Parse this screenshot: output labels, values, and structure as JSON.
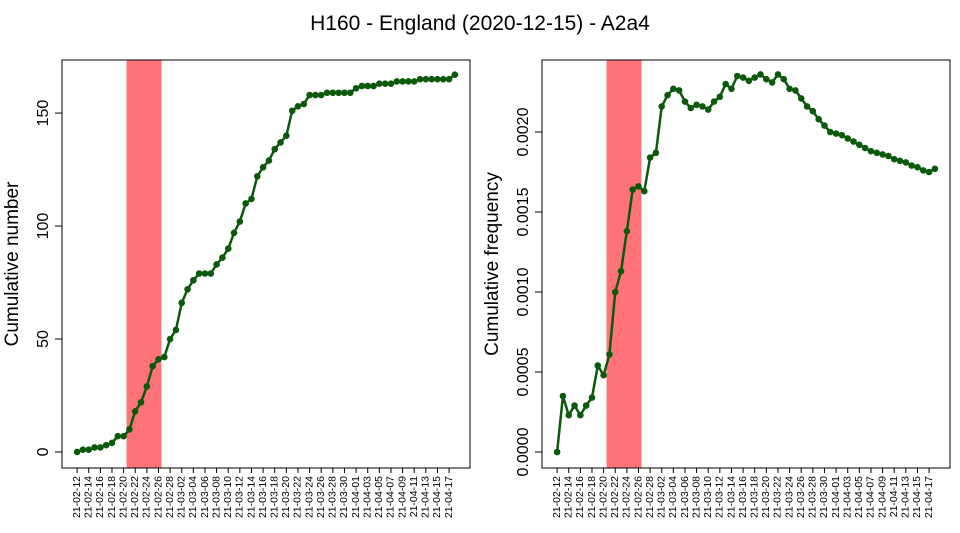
{
  "title": "H160 - England (2020-12-15) - A2a4",
  "chart_data": [
    {
      "type": "line",
      "ylabel": "Cumulative number",
      "color": "#0b5a0b",
      "categories": [
        "21-02-12",
        null,
        "21-02-14",
        null,
        "21-02-16",
        null,
        "21-02-18",
        null,
        "21-02-20",
        null,
        "21-02-22",
        null,
        "21-02-24",
        null,
        "21-02-26",
        null,
        "21-02-28",
        null,
        "21-03-02",
        null,
        "21-03-04",
        null,
        "21-03-06",
        null,
        "21-03-08",
        null,
        "21-03-10",
        null,
        "21-03-12",
        null,
        "21-03-14",
        null,
        "21-03-16",
        null,
        "21-03-18",
        null,
        "21-03-20",
        null,
        "21-03-22",
        null,
        "21-03-24",
        null,
        "21-03-26",
        null,
        "21-03-28",
        null,
        "21-03-30",
        null,
        "21-04-01",
        null,
        "21-04-03",
        null,
        "21-04-05",
        null,
        "21-04-07",
        null,
        "21-04-09",
        null,
        "21-04-11",
        null,
        "21-04-13",
        null,
        "21-04-15",
        null,
        "21-04-17",
        null
      ],
      "values": [
        0,
        1,
        1,
        2,
        2,
        3,
        4,
        7,
        7,
        10,
        18,
        22,
        29,
        38,
        41,
        42,
        50,
        54,
        66,
        72,
        76,
        79,
        79,
        79,
        83,
        86,
        90,
        97,
        102,
        110,
        112,
        122,
        126,
        129,
        134,
        137,
        140,
        151,
        153,
        154,
        158,
        158,
        158,
        159,
        159,
        159,
        159,
        159,
        161,
        162,
        162,
        162,
        163,
        163,
        163,
        164,
        164,
        164,
        164,
        165,
        165,
        165,
        165,
        165,
        165,
        167
      ],
      "ylim": [
        -7.1,
        173.5
      ],
      "yticks": [
        0,
        50,
        100,
        150
      ],
      "highlight": {
        "from": 8.5,
        "to": 14.5,
        "color": "#ff7378"
      }
    },
    {
      "type": "line",
      "ylabel": "Cumulative frequency",
      "color": "#0b5a0b",
      "categories": [
        "21-02-12",
        null,
        "21-02-14",
        null,
        "21-02-16",
        null,
        "21-02-18",
        null,
        "21-02-20",
        null,
        "21-02-22",
        null,
        "21-02-24",
        null,
        "21-02-26",
        null,
        "21-02-28",
        null,
        "21-03-02",
        null,
        "21-03-04",
        null,
        "21-03-06",
        null,
        "21-03-08",
        null,
        "21-03-10",
        null,
        "21-03-12",
        null,
        "21-03-14",
        null,
        "21-03-16",
        null,
        "21-03-18",
        null,
        "21-03-20",
        null,
        "21-03-22",
        null,
        "21-03-24",
        null,
        "21-03-26",
        null,
        "21-03-28",
        null,
        "21-03-30",
        null,
        "21-04-01",
        null,
        "21-04-03",
        null,
        "21-04-05",
        null,
        "21-04-07",
        null,
        "21-04-09",
        null,
        "21-04-11",
        null,
        "21-04-13",
        null,
        "21-04-15",
        null,
        "21-04-17",
        null
      ],
      "values": [
        0,
        0.00035,
        0.00023,
        0.00029,
        0.00023,
        0.00029,
        0.00034,
        0.00054,
        0.00048,
        0.00061,
        0.001,
        0.00113,
        0.00138,
        0.00164,
        0.00166,
        0.00163,
        0.00184,
        0.00187,
        0.00216,
        0.00223,
        0.00227,
        0.00226,
        0.00219,
        0.00215,
        0.00217,
        0.00216,
        0.00214,
        0.00219,
        0.00222,
        0.0023,
        0.00227,
        0.00235,
        0.00234,
        0.00232,
        0.00234,
        0.00236,
        0.00233,
        0.00231,
        0.00236,
        0.00233,
        0.00227,
        0.00226,
        0.00221,
        0.00216,
        0.00213,
        0.00208,
        0.00204,
        0.002,
        0.00199,
        0.00198,
        0.00196,
        0.00194,
        0.00192,
        0.0019,
        0.00188,
        0.00187,
        0.00186,
        0.00185,
        0.00183,
        0.00182,
        0.00181,
        0.00179,
        0.00178,
        0.00176,
        0.00175,
        0.00177
      ],
      "ylim": [
        -0.0001,
        0.00245
      ],
      "yticks": [
        {
          "value": 0,
          "label": "0.0000"
        },
        {
          "value": 0.0005,
          "label": "0.0005"
        },
        {
          "value": 0.001,
          "label": "0.0010"
        },
        {
          "value": 0.0015,
          "label": "0.0015"
        },
        {
          "value": 0.002,
          "label": "0.0020"
        }
      ],
      "highlight": {
        "from": 8.5,
        "to": 14.5,
        "color": "#ff7378"
      }
    }
  ]
}
